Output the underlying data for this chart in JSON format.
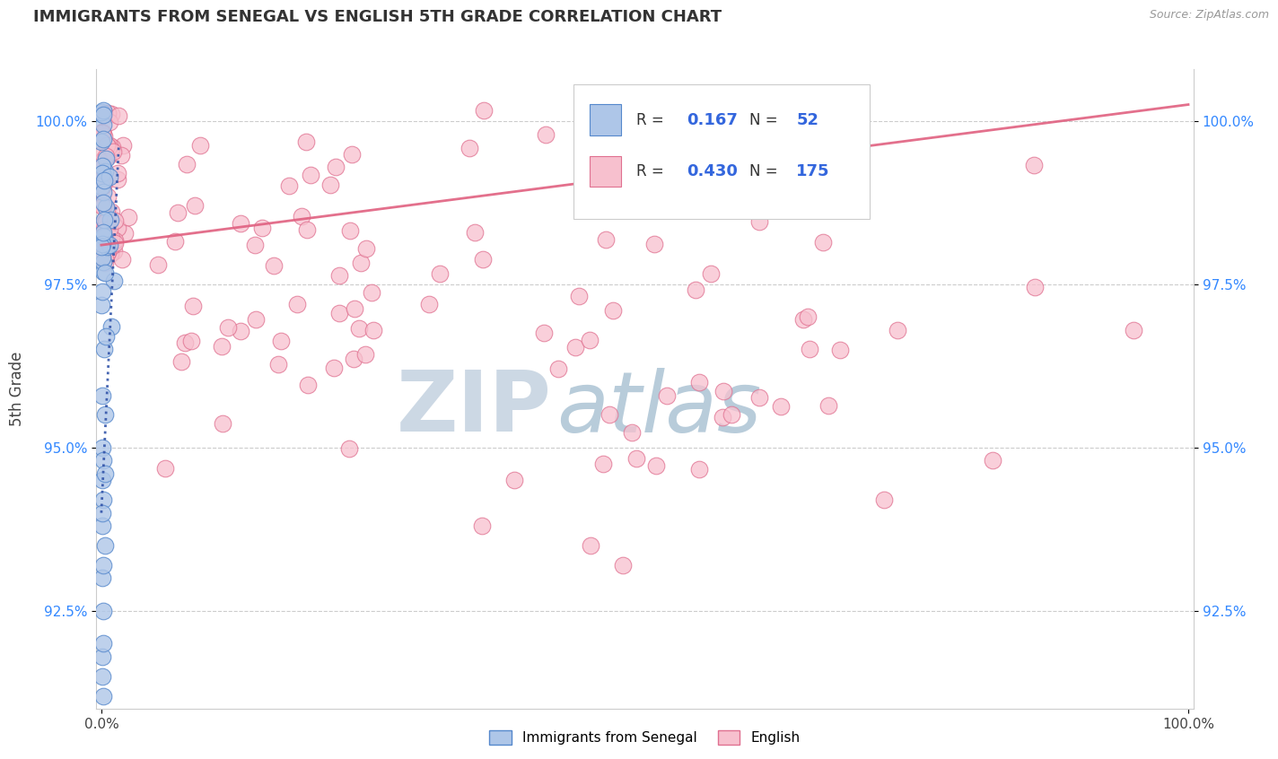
{
  "title": "IMMIGRANTS FROM SENEGAL VS ENGLISH 5TH GRADE CORRELATION CHART",
  "source": "Source: ZipAtlas.com",
  "ylabel": "5th Grade",
  "yticks": [
    92.5,
    95.0,
    97.5,
    100.0
  ],
  "ytick_labels": [
    "92.5%",
    "95.0%",
    "97.5%",
    "100.0%"
  ],
  "legend_blue_r": "0.167",
  "legend_blue_n": "52",
  "legend_pink_r": "0.430",
  "legend_pink_n": "175",
  "blue_color": "#aec6e8",
  "blue_edge": "#5588cc",
  "pink_color": "#f7c0ce",
  "pink_edge": "#e07090",
  "blue_line_color": "#3355aa",
  "pink_line_color": "#e06080",
  "watermark_zip_color": "#d0dce8",
  "watermark_atlas_color": "#c8d8e0",
  "background_color": "#ffffff",
  "xlim": [
    0.0,
    1.0
  ],
  "ylim": [
    91.0,
    100.8
  ],
  "xmin": 0.0,
  "xmax": 1.0
}
